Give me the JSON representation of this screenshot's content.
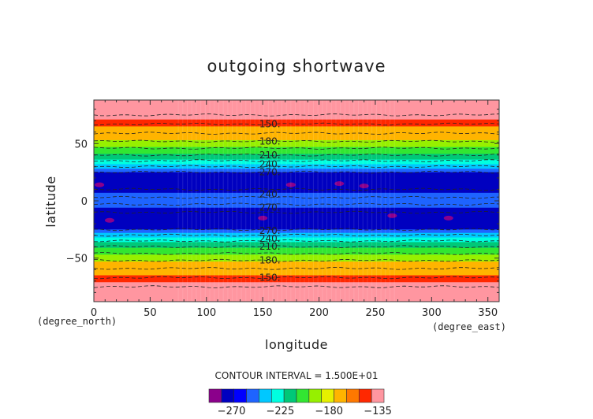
{
  "chart_data": {
    "type": "heatmap",
    "title": "outgoing shortwave",
    "xlabel": "longitude",
    "ylabel": "latitude",
    "x_units": "(degree_east)",
    "y_units": "(degree_north)",
    "xlim": [
      0,
      360
    ],
    "ylim": [
      -90,
      90
    ],
    "plot_ylim": [
      -88,
      88
    ],
    "x_ticks": [
      0,
      50,
      100,
      150,
      200,
      250,
      300,
      350
    ],
    "y_ticks": [
      -50,
      0,
      50
    ],
    "contour_interval_text": "CONTOUR INTERVAL = 1.500E+01",
    "colorbar": {
      "min": -285,
      "max": -135,
      "ticks": [
        -270,
        -225,
        -180,
        -135
      ],
      "colors": [
        "#8b008b",
        "#0000c0",
        "#0000ff",
        "#1e64ff",
        "#00c8ff",
        "#00ffe0",
        "#00c878",
        "#32e632",
        "#96f000",
        "#e6f000",
        "#ffb400",
        "#ff7800",
        "#ff2800",
        "#ff96a0"
      ]
    },
    "contour_labels": [
      {
        "text": "150.",
        "lon": 140,
        "lat": 67
      },
      {
        "text": "180.",
        "lon": 140,
        "lat": 52
      },
      {
        "text": "210.",
        "lon": 140,
        "lat": 40
      },
      {
        "text": "240.",
        "lon": 140,
        "lat": 32
      },
      {
        "text": "270.",
        "lon": 140,
        "lat": 25
      },
      {
        "text": "240.",
        "lon": 140,
        "lat": 6
      },
      {
        "text": "270.",
        "lon": 140,
        "lat": -6
      },
      {
        "text": "270.",
        "lon": 140,
        "lat": -26
      },
      {
        "text": "240.",
        "lon": 140,
        "lat": -33
      },
      {
        "text": "210.",
        "lon": 140,
        "lat": -40
      },
      {
        "text": "180.",
        "lon": 140,
        "lat": -52
      },
      {
        "text": "150.",
        "lon": 140,
        "lat": -67
      }
    ],
    "contour_lines_lat": [
      75,
      67,
      59,
      52,
      46,
      40,
      35,
      30,
      25,
      10,
      3,
      -3,
      -10,
      -25,
      -30,
      -35,
      -40,
      -46,
      -52,
      -59,
      -67,
      -75
    ],
    "bands_north_to_south": [
      {
        "lat_top": 88,
        "lat_bottom": 76,
        "value": -135
      },
      {
        "lat_top": 76,
        "lat_bottom": 71,
        "value": -140
      },
      {
        "lat_top": 71,
        "lat_bottom": 65,
        "value": -150
      },
      {
        "lat_top": 65,
        "lat_bottom": 59,
        "value": -165
      },
      {
        "lat_top": 59,
        "lat_bottom": 53,
        "value": -175
      },
      {
        "lat_top": 53,
        "lat_bottom": 47,
        "value": -190
      },
      {
        "lat_top": 47,
        "lat_bottom": 41,
        "value": -200
      },
      {
        "lat_top": 41,
        "lat_bottom": 36,
        "value": -215
      },
      {
        "lat_top": 36,
        "lat_bottom": 32,
        "value": -225
      },
      {
        "lat_top": 32,
        "lat_bottom": 28,
        "value": -235
      },
      {
        "lat_top": 28,
        "lat_bottom": 25,
        "value": -250
      },
      {
        "lat_top": 25,
        "lat_bottom": 7,
        "value": -270
      },
      {
        "lat_top": 7,
        "lat_bottom": 3,
        "value": -255
      },
      {
        "lat_top": 3,
        "lat_bottom": -3,
        "value": -245
      },
      {
        "lat_top": -3,
        "lat_bottom": -6,
        "value": -255
      },
      {
        "lat_top": -6,
        "lat_bottom": -25,
        "value": -270
      },
      {
        "lat_top": -25,
        "lat_bottom": -28,
        "value": -250
      },
      {
        "lat_top": -28,
        "lat_bottom": -32,
        "value": -235
      },
      {
        "lat_top": -32,
        "lat_bottom": -36,
        "value": -225
      },
      {
        "lat_top": -36,
        "lat_bottom": -41,
        "value": -215
      },
      {
        "lat_top": -41,
        "lat_bottom": -47,
        "value": -200
      },
      {
        "lat_top": -47,
        "lat_bottom": -53,
        "value": -190
      },
      {
        "lat_top": -53,
        "lat_bottom": -59,
        "value": -175
      },
      {
        "lat_top": -59,
        "lat_bottom": -65,
        "value": -165
      },
      {
        "lat_top": -65,
        "lat_bottom": -71,
        "value": -150
      },
      {
        "lat_top": -71,
        "lat_bottom": -76,
        "value": -140
      },
      {
        "lat_top": -76,
        "lat_bottom": -88,
        "value": -135
      }
    ],
    "minima_patches": [
      {
        "lon": 5,
        "lat": 14,
        "value": -280
      },
      {
        "lon": 175,
        "lat": 14,
        "value": -280
      },
      {
        "lon": 218,
        "lat": 15,
        "value": -280
      },
      {
        "lon": 240,
        "lat": 13,
        "value": -280
      },
      {
        "lon": 14,
        "lat": -17,
        "value": -280
      },
      {
        "lon": 150,
        "lat": -15,
        "value": -280
      },
      {
        "lon": 265,
        "lat": -13,
        "value": -280
      },
      {
        "lon": 315,
        "lat": -15,
        "value": -280
      }
    ],
    "equatorial_patches": [
      {
        "lon": 20,
        "lat": 0,
        "value": -255
      },
      {
        "lon": 55,
        "lat": -2,
        "value": -255
      },
      {
        "lon": 110,
        "lat": 0,
        "value": -255
      },
      {
        "lon": 160,
        "lat": -3,
        "value": -255
      },
      {
        "lon": 230,
        "lat": 0,
        "value": -255
      },
      {
        "lon": 300,
        "lat": -2,
        "value": -255
      }
    ]
  }
}
